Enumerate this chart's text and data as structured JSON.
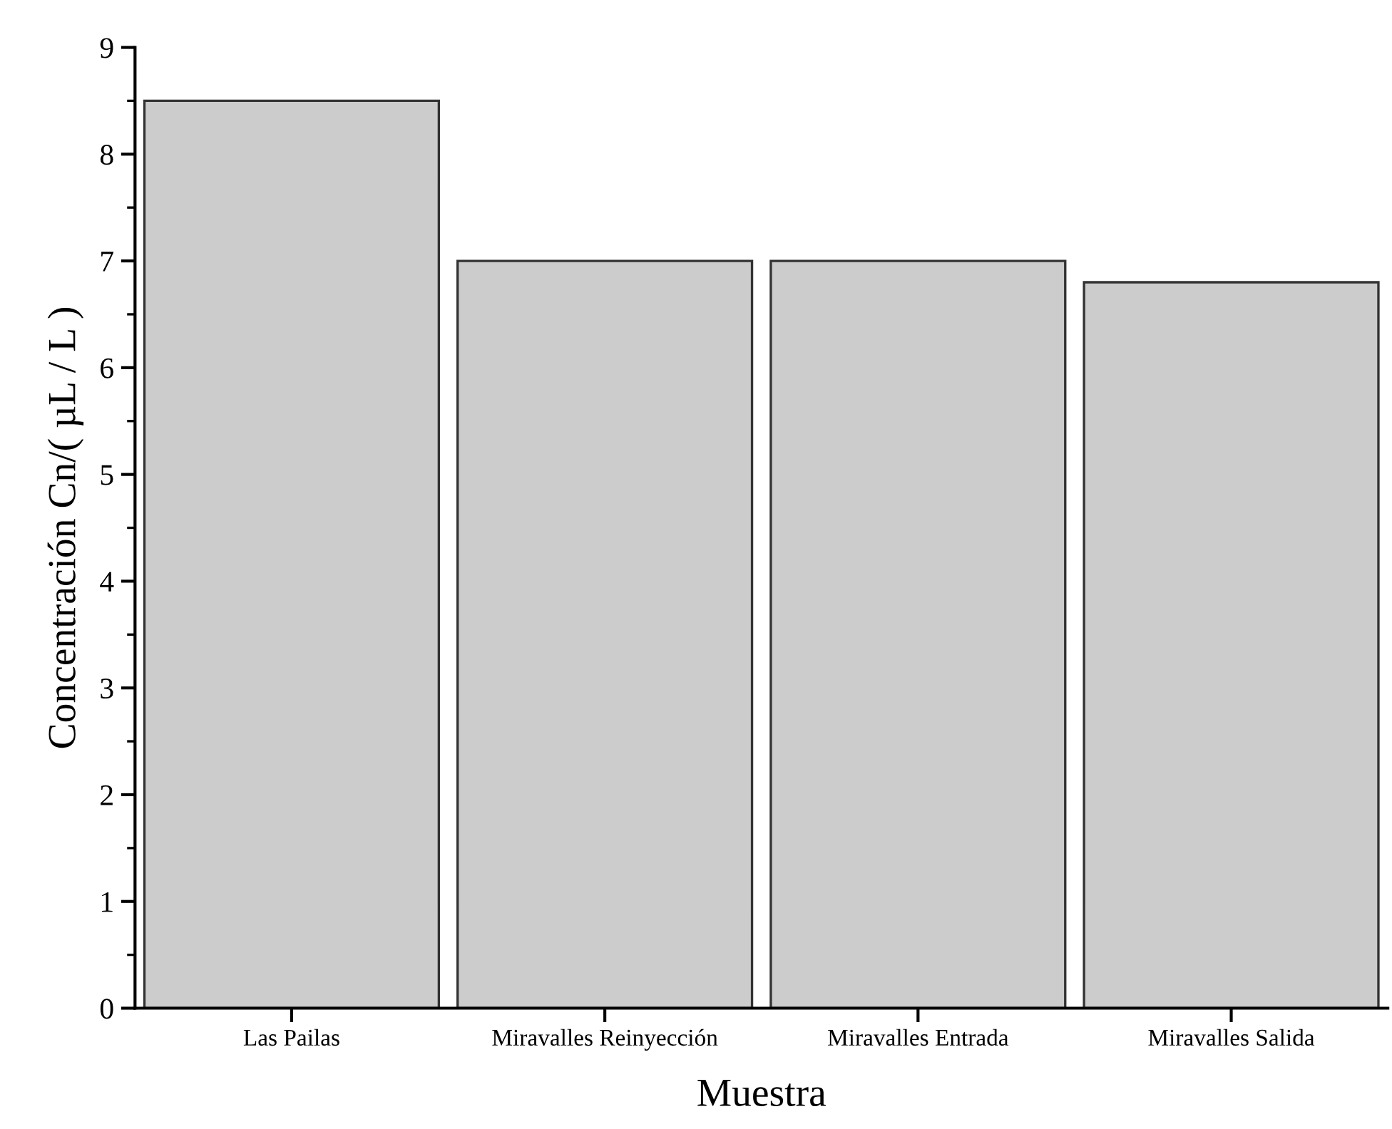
{
  "chart_data": {
    "type": "bar",
    "xlabel": "Muestra",
    "ylabel": "Concentración Cn/( µL / L )",
    "categories": [
      "Las Pailas",
      "Miravalles Reinyección",
      "Miravalles Entrada",
      "Miravalles Salida"
    ],
    "values": [
      8.5,
      7.0,
      7.0,
      6.8
    ],
    "color": "#cccccc",
    "ylim": [
      0,
      9
    ],
    "yticks": [
      0,
      1,
      2,
      3,
      4,
      5,
      6,
      7,
      8,
      9
    ],
    "grid": false
  }
}
